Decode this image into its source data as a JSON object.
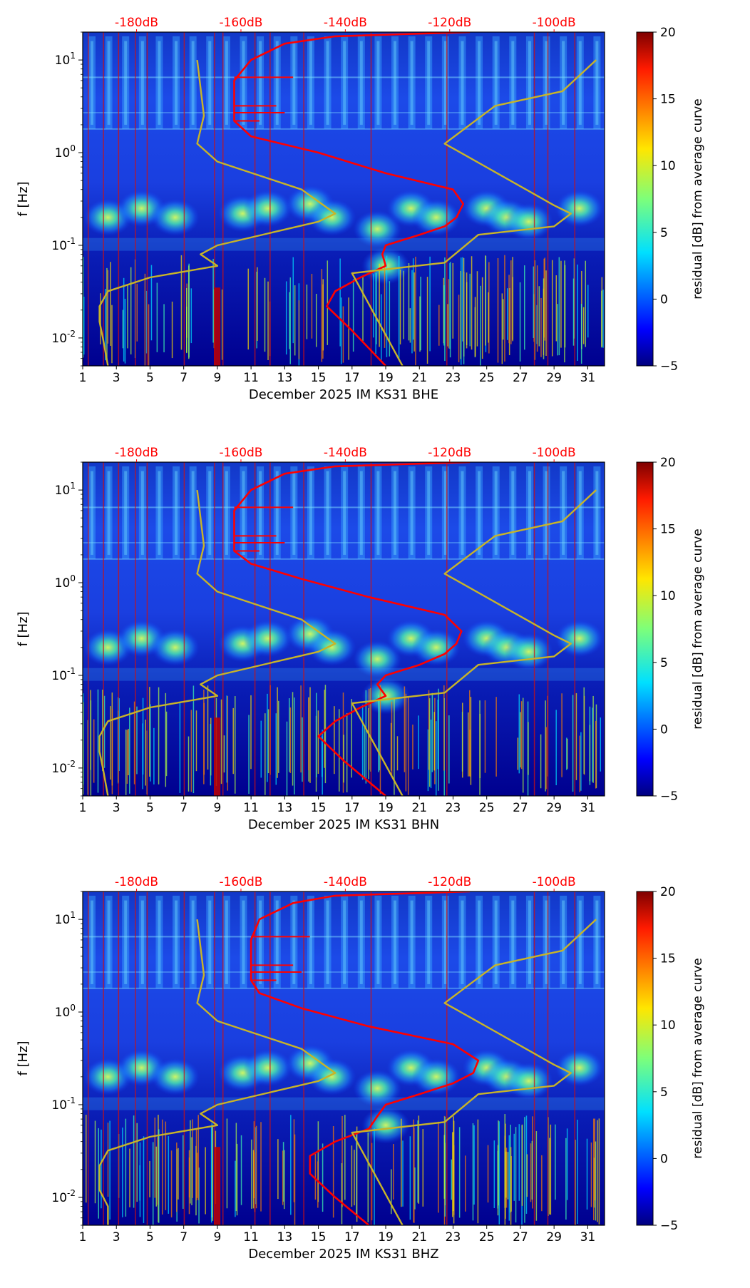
{
  "chart_data": [
    {
      "type": "heatmap",
      "xlabel": "December 2025 IM KS31  BHE",
      "ylabel": "f [Hz]",
      "x_ticks": [
        "1",
        "3",
        "5",
        "7",
        "9",
        "11",
        "13",
        "15",
        "17",
        "19",
        "21",
        "23",
        "25",
        "27",
        "29",
        "31"
      ],
      "x_range": [
        1,
        32
      ],
      "y_ticks": [
        "10^-2",
        "10^-1",
        "10^0",
        "10^1"
      ],
      "y_range": [
        0.005,
        20
      ],
      "y_scale": "log",
      "top_db_ticks": [
        "-180dB",
        "-160dB",
        "-140dB",
        "-120dB",
        "-100dB"
      ],
      "colorbar": {
        "label": "residual [dB] from average curve",
        "ticks": [
          "-5",
          "0",
          "5",
          "10",
          "15",
          "20"
        ],
        "range": [
          -5,
          20
        ]
      },
      "series": [
        {
          "name": "average PSD (red)",
          "color": "#ff0000",
          "points": [
            [
              19,
              0.005
            ],
            [
              17,
              0.012
            ],
            [
              15.5,
              0.022
            ],
            [
              16,
              0.032
            ],
            [
              17.5,
              0.045
            ],
            [
              19,
              0.06
            ],
            [
              18.8,
              0.08
            ],
            [
              19,
              0.1
            ],
            [
              21,
              0.13
            ],
            [
              22.5,
              0.16
            ],
            [
              23.2,
              0.2
            ],
            [
              23.6,
              0.28
            ],
            [
              23,
              0.4
            ],
            [
              19,
              0.6
            ],
            [
              15,
              1.0
            ],
            [
              11,
              1.5
            ],
            [
              10,
              2.2
            ],
            [
              10,
              3.5
            ],
            [
              10,
              6
            ],
            [
              11,
              10
            ],
            [
              13,
              15
            ],
            [
              16,
              18
            ],
            [
              24,
              20
            ]
          ]
        },
        {
          "name": "noise model (yellow)",
          "color": "#c8b428",
          "points": [
            [
              2.5,
              0.005
            ],
            [
              2.2,
              0.01
            ],
            [
              2,
              0.015
            ],
            [
              2,
              0.022
            ],
            [
              2.5,
              0.032
            ],
            [
              5,
              0.045
            ],
            [
              9,
              0.06
            ],
            [
              8,
              0.08
            ],
            [
              9,
              0.1
            ],
            [
              15,
              0.18
            ],
            [
              16,
              0.22
            ],
            [
              14,
              0.4
            ],
            [
              9,
              0.8
            ],
            [
              7.8,
              1.25
            ],
            [
              8.2,
              2.5
            ],
            [
              8,
              5
            ],
            [
              7.8,
              10
            ]
          ]
        },
        {
          "name": "noise model high (yellow)",
          "color": "#c8b428",
          "points": [
            [
              20,
              0.005
            ],
            [
              17,
              0.05
            ],
            [
              22.5,
              0.065
            ],
            [
              24.5,
              0.13
            ],
            [
              29,
              0.16
            ],
            [
              30,
              0.22
            ],
            [
              29,
              0.27
            ],
            [
              22.5,
              1.25
            ],
            [
              25.5,
              3.2
            ],
            [
              29.5,
              4.6
            ],
            [
              31.5,
              10
            ]
          ]
        }
      ]
    },
    {
      "type": "heatmap",
      "xlabel": "December 2025 IM KS31  BHN",
      "ylabel": "f [Hz]",
      "x_ticks": [
        "1",
        "3",
        "5",
        "7",
        "9",
        "11",
        "13",
        "15",
        "17",
        "19",
        "21",
        "23",
        "25",
        "27",
        "29",
        "31"
      ],
      "x_range": [
        1,
        32
      ],
      "y_ticks": [
        "10^-2",
        "10^-1",
        "10^0",
        "10^1"
      ],
      "y_range": [
        0.005,
        20
      ],
      "y_scale": "log",
      "top_db_ticks": [
        "-180dB",
        "-160dB",
        "-140dB",
        "-120dB",
        "-100dB"
      ],
      "colorbar": {
        "label": "residual [dB] from average curve",
        "ticks": [
          "-5",
          "0",
          "5",
          "10",
          "15",
          "20"
        ],
        "range": [
          -5,
          20
        ]
      },
      "series": [
        {
          "name": "average PSD (red)",
          "color": "#ff0000",
          "points": [
            [
              19,
              0.005
            ],
            [
              16.5,
              0.012
            ],
            [
              15,
              0.022
            ],
            [
              16,
              0.032
            ],
            [
              17.5,
              0.045
            ],
            [
              19,
              0.06
            ],
            [
              18.5,
              0.08
            ],
            [
              19,
              0.1
            ],
            [
              21,
              0.13
            ],
            [
              22.5,
              0.17
            ],
            [
              23.2,
              0.22
            ],
            [
              23.5,
              0.3
            ],
            [
              22.5,
              0.45
            ],
            [
              18,
              0.7
            ],
            [
              14,
              1.1
            ],
            [
              11,
              1.6
            ],
            [
              10,
              2.2
            ],
            [
              10,
              3.5
            ],
            [
              10,
              6
            ],
            [
              11,
              10
            ],
            [
              13,
              15
            ],
            [
              16,
              18
            ],
            [
              24,
              20
            ]
          ]
        },
        {
          "name": "noise model (yellow)",
          "color": "#c8b428",
          "points": [
            [
              2.5,
              0.005
            ],
            [
              2.2,
              0.01
            ],
            [
              2,
              0.015
            ],
            [
              2,
              0.022
            ],
            [
              2.5,
              0.032
            ],
            [
              5,
              0.045
            ],
            [
              9,
              0.06
            ],
            [
              8,
              0.08
            ],
            [
              9,
              0.1
            ],
            [
              15,
              0.18
            ],
            [
              16,
              0.22
            ],
            [
              14,
              0.4
            ],
            [
              9,
              0.8
            ],
            [
              7.8,
              1.25
            ],
            [
              8.2,
              2.5
            ],
            [
              8,
              5
            ],
            [
              7.8,
              10
            ]
          ]
        },
        {
          "name": "noise model high (yellow)",
          "color": "#c8b428",
          "points": [
            [
              20,
              0.005
            ],
            [
              17,
              0.05
            ],
            [
              22.5,
              0.065
            ],
            [
              24.5,
              0.13
            ],
            [
              29,
              0.16
            ],
            [
              30,
              0.22
            ],
            [
              29,
              0.27
            ],
            [
              22.5,
              1.25
            ],
            [
              25.5,
              3.2
            ],
            [
              29.5,
              4.6
            ],
            [
              31.5,
              10
            ]
          ]
        }
      ]
    },
    {
      "type": "heatmap",
      "xlabel": "December 2025 IM KS31  BHZ",
      "ylabel": "f [Hz]",
      "x_ticks": [
        "1",
        "3",
        "5",
        "7",
        "9",
        "11",
        "13",
        "15",
        "17",
        "19",
        "21",
        "23",
        "25",
        "27",
        "29",
        "31"
      ],
      "x_range": [
        1,
        32
      ],
      "y_ticks": [
        "10^-2",
        "10^-1",
        "10^0",
        "10^1"
      ],
      "y_range": [
        0.005,
        20
      ],
      "y_scale": "log",
      "top_db_ticks": [
        "-180dB",
        "-160dB",
        "-140dB",
        "-120dB",
        "-100dB"
      ],
      "colorbar": {
        "label": "residual [dB] from average curve",
        "ticks": [
          "-5",
          "0",
          "5",
          "10",
          "15",
          "20"
        ],
        "range": [
          -5,
          20
        ]
      },
      "series": [
        {
          "name": "average PSD (red)",
          "color": "#ff0000",
          "points": [
            [
              18,
              0.005
            ],
            [
              16,
              0.01
            ],
            [
              14.5,
              0.018
            ],
            [
              14.5,
              0.028
            ],
            [
              16,
              0.04
            ],
            [
              18,
              0.055
            ],
            [
              18.5,
              0.075
            ],
            [
              19,
              0.1
            ],
            [
              21,
              0.13
            ],
            [
              23,
              0.17
            ],
            [
              24.2,
              0.22
            ],
            [
              24.5,
              0.3
            ],
            [
              23,
              0.45
            ],
            [
              18,
              0.7
            ],
            [
              14,
              1.1
            ],
            [
              11.5,
              1.6
            ],
            [
              11,
              2.2
            ],
            [
              11,
              3.5
            ],
            [
              11,
              6
            ],
            [
              11.5,
              10
            ],
            [
              13.5,
              15
            ],
            [
              16,
              18
            ],
            [
              24,
              20
            ]
          ]
        },
        {
          "name": "noise model (yellow)",
          "color": "#c8b428",
          "points": [
            [
              2.5,
              0.005
            ],
            [
              2.5,
              0.008
            ],
            [
              2,
              0.012
            ],
            [
              2,
              0.022
            ],
            [
              2.5,
              0.032
            ],
            [
              5,
              0.045
            ],
            [
              9,
              0.06
            ],
            [
              8,
              0.08
            ],
            [
              9,
              0.1
            ],
            [
              15,
              0.18
            ],
            [
              16,
              0.22
            ],
            [
              14,
              0.4
            ],
            [
              9,
              0.8
            ],
            [
              7.8,
              1.25
            ],
            [
              8.2,
              2.5
            ],
            [
              8,
              5
            ],
            [
              7.8,
              10
            ]
          ]
        },
        {
          "name": "noise model high (yellow)",
          "color": "#c8b428",
          "points": [
            [
              20,
              0.005
            ],
            [
              17,
              0.05
            ],
            [
              22.5,
              0.065
            ],
            [
              24.5,
              0.13
            ],
            [
              29,
              0.16
            ],
            [
              30,
              0.22
            ],
            [
              29,
              0.27
            ],
            [
              22.5,
              1.25
            ],
            [
              25.5,
              3.2
            ],
            [
              29.5,
              4.6
            ],
            [
              31.5,
              10
            ]
          ]
        }
      ]
    }
  ]
}
